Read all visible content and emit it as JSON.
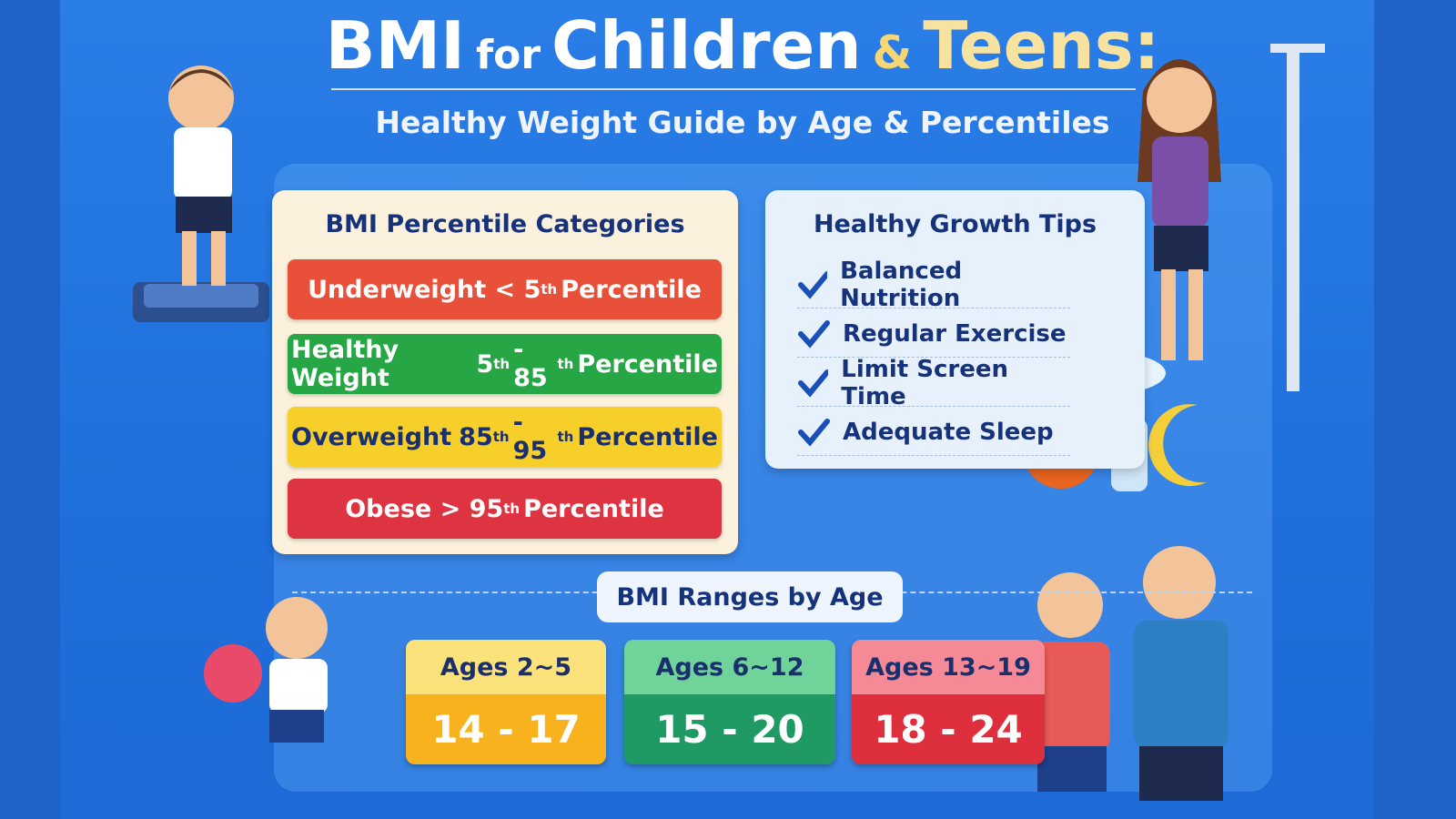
{
  "header": {
    "title": [
      "BMI",
      "for",
      "Children",
      "&",
      "Teens:"
    ],
    "subtitle": "Healthy Weight Guide by Age & Percentiles"
  },
  "categories": {
    "heading": "BMI Percentile Categories",
    "items": [
      {
        "color": "#e8503a",
        "parts": [
          {
            "text": "Underweight < 5"
          },
          {
            "sup": "th"
          },
          {
            "text": "Percentile"
          }
        ]
      },
      {
        "color": "#26a644",
        "parts": [
          {
            "text": "Healthy Weight"
          },
          {
            "text": "5"
          },
          {
            "sup": "th"
          },
          {
            "text": "- 85"
          },
          {
            "sup": "th"
          },
          {
            "text": "Percentile"
          }
        ]
      },
      {
        "color": "#f7cf2a",
        "parts": [
          {
            "text": "Overweight"
          },
          {
            "text": "85"
          },
          {
            "sup": "th"
          },
          {
            "text": "- 95"
          },
          {
            "sup": "th"
          },
          {
            "text": "Percentile"
          }
        ]
      },
      {
        "color": "#de3340",
        "parts": [
          {
            "text": "Obese > 95"
          },
          {
            "sup": "th"
          },
          {
            "text": "Percentile"
          }
        ]
      }
    ]
  },
  "tips": {
    "heading": "Healthy Growth Tips",
    "items": [
      "Balanced Nutrition",
      "Regular Exercise",
      "Limit Screen Time",
      "Adequate Sleep"
    ]
  },
  "ranges": {
    "heading": "BMI Ranges by Age",
    "items": [
      {
        "age": "Ages 2~5",
        "range": "14 - 17",
        "top": "#fbe27a",
        "bottom": "#f7b21d"
      },
      {
        "age": "Ages 6~12",
        "range": "15 - 20",
        "top": "#6fd39a",
        "bottom": "#1f9a64"
      },
      {
        "age": "Ages 13~19",
        "range": "18 - 24",
        "top": "#f58a96",
        "bottom": "#de2f3d"
      }
    ]
  }
}
